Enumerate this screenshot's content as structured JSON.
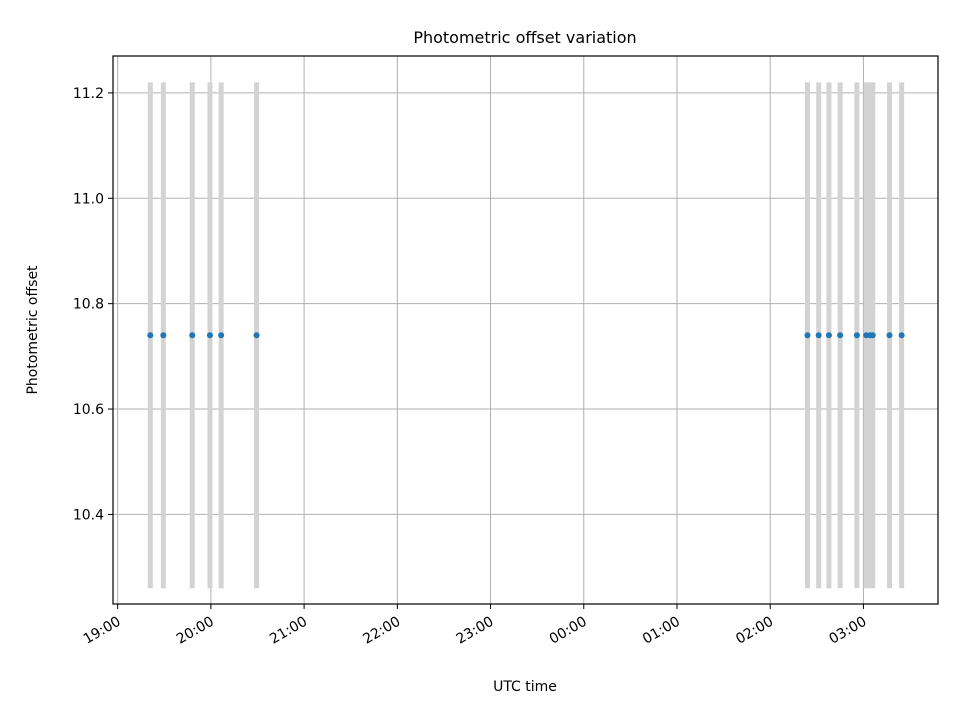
{
  "chart_data": {
    "type": "scatter",
    "title": "Photometric offset variation",
    "xlabel": "UTC time",
    "ylabel": "Photometric offset",
    "grid": true,
    "x_unit": "hours after 19:00 UTC",
    "xlim": [
      -0.05,
      8.8
    ],
    "ylim": [
      10.23,
      11.27
    ],
    "xticks": [
      {
        "value": 0,
        "label": "19:00"
      },
      {
        "value": 1,
        "label": "20:00"
      },
      {
        "value": 2,
        "label": "21:00"
      },
      {
        "value": 3,
        "label": "22:00"
      },
      {
        "value": 4,
        "label": "23:00"
      },
      {
        "value": 5,
        "label": "00:00"
      },
      {
        "value": 6,
        "label": "01:00"
      },
      {
        "value": 7,
        "label": "02:00"
      },
      {
        "value": 8,
        "label": "03:00"
      }
    ],
    "yticks": [
      {
        "value": 10.4,
        "label": "10.4"
      },
      {
        "value": 10.6,
        "label": "10.6"
      },
      {
        "value": 10.8,
        "label": "10.8"
      },
      {
        "value": 11.0,
        "label": "11.0"
      },
      {
        "value": 11.2,
        "label": "11.2"
      }
    ],
    "series": [
      {
        "color": "#1f77b4",
        "x": [
          0.35,
          0.49,
          0.8,
          0.99,
          1.11,
          1.49,
          7.4,
          7.52,
          7.63,
          7.75,
          7.93,
          8.03,
          8.07,
          8.1,
          8.28,
          8.41
        ],
        "y": [
          10.74,
          10.74,
          10.74,
          10.74,
          10.74,
          10.74,
          10.74,
          10.74,
          10.74,
          10.74,
          10.74,
          10.74,
          10.74,
          10.74,
          10.74,
          10.74
        ],
        "error_low": [
          10.26,
          10.26,
          10.26,
          10.26,
          10.26,
          10.26,
          10.26,
          10.26,
          10.26,
          10.26,
          10.26,
          10.26,
          10.26,
          10.26,
          10.26,
          10.26
        ],
        "error_high": [
          11.22,
          11.22,
          11.22,
          11.22,
          11.22,
          11.22,
          11.22,
          11.22,
          11.22,
          11.22,
          11.22,
          11.22,
          11.22,
          11.22,
          11.22,
          11.22
        ],
        "error_color": "#d3d3d3"
      }
    ]
  }
}
